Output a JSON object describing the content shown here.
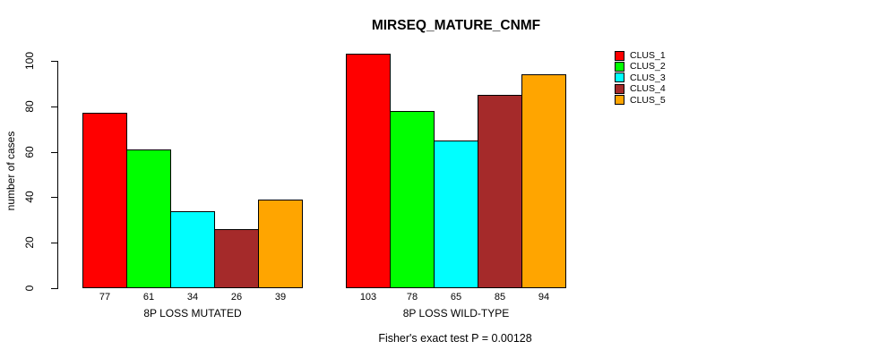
{
  "title": "MIRSEQ_MATURE_CNMF",
  "caption": "Fisher's exact test P = 0.00128",
  "chart_data": {
    "type": "bar",
    "title": "MIRSEQ_MATURE_CNMF",
    "xlabel": "",
    "ylabel": "number of cases",
    "ylim": [
      0,
      100
    ],
    "yticks": [
      0,
      20,
      40,
      60,
      80,
      100
    ],
    "grid": false,
    "legend_position": "right",
    "categories": [
      "8P LOSS MUTATED",
      "8P LOSS WILD-TYPE"
    ],
    "series": [
      {
        "name": "CLUS_1",
        "color": "#FF0000",
        "values": [
          77,
          103
        ]
      },
      {
        "name": "CLUS_2",
        "color": "#00FF00",
        "values": [
          61,
          78
        ]
      },
      {
        "name": "CLUS_3",
        "color": "#00FFFF",
        "values": [
          34,
          65
        ]
      },
      {
        "name": "CLUS_4",
        "color": "#A52A2A",
        "values": [
          26,
          85
        ]
      },
      {
        "name": "CLUS_5",
        "color": "#FFA500",
        "values": [
          39,
          94
        ]
      }
    ],
    "bar_value_labels_shown": true,
    "annotation": "Fisher's exact test P = 0.00128"
  }
}
